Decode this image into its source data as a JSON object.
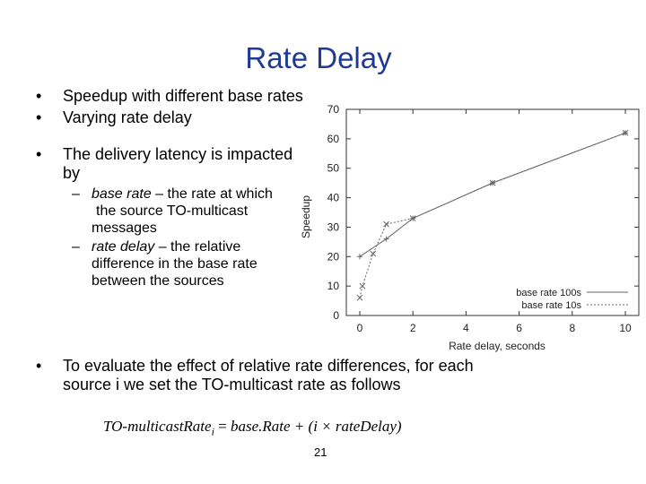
{
  "title": "Rate Delay",
  "bullets": {
    "b1": "Speedup with different base rates",
    "b2": "Varying rate delay",
    "b3_line1": "The delivery latency is impacted",
    "b3_line2": "by",
    "sub1_term": "base rate",
    "sub1_rest": " – the rate at which",
    "sub1_line2": "the source TO-multicast",
    "sub1_line3": "messages",
    "sub2_term": "rate delay",
    "sub2_rest": " – the relative",
    "sub2_line2": "difference in the base rate",
    "sub2_line3": "between the sources",
    "b4": "To evaluate the effect of relative rate differences, for each source i we set the TO-multicast rate as follows"
  },
  "formula": {
    "lhs": "TO-multicastRate",
    "sub": "i",
    "eq": " = ",
    "rhs": "base.Rate + (i × rateDelay)"
  },
  "page_number": "21",
  "chart_data": {
    "type": "line",
    "xlabel": "Rate delay, seconds",
    "ylabel": "Speedup",
    "xlim": [
      0,
      10
    ],
    "ylim": [
      0,
      70
    ],
    "xticks": [
      0,
      2,
      4,
      6,
      8,
      10
    ],
    "yticks": [
      0,
      10,
      20,
      30,
      40,
      50,
      60,
      70
    ],
    "legend_position": "bottom-right",
    "grid": false,
    "series": [
      {
        "name": "base rate 100s",
        "style": "solid",
        "color": "#666666",
        "x": [
          0,
          1,
          2,
          5,
          10
        ],
        "y": [
          20,
          26,
          33,
          45,
          62
        ]
      },
      {
        "name": "base rate 10s",
        "style": "dotted",
        "color": "#666666",
        "x": [
          0,
          0.1,
          0.5,
          1,
          2,
          5,
          10
        ],
        "y": [
          6,
          10,
          21,
          31,
          33,
          45,
          62
        ]
      }
    ]
  }
}
